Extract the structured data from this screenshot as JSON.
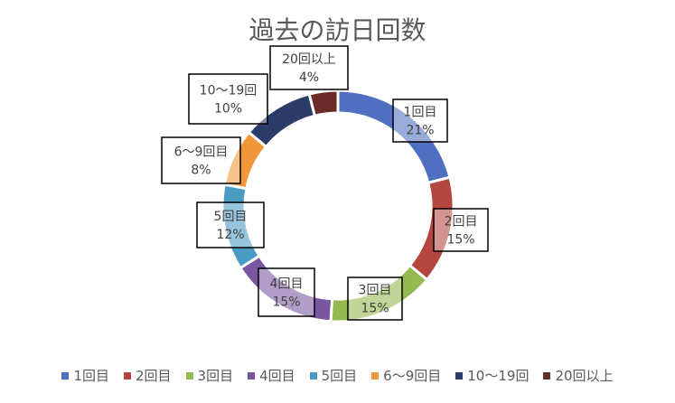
{
  "chart_data": {
    "type": "pie",
    "title": "過去の訪日回数",
    "legend_position": "bottom",
    "categories": [
      "1回目",
      "2回目",
      "3回目",
      "4回目",
      "5回目",
      "6～9回目",
      "10～19回",
      "20回以上"
    ],
    "values": [
      21,
      15,
      15,
      15,
      12,
      8,
      10,
      4
    ],
    "data_labels": [
      "21%",
      "15%",
      "15%",
      "15%",
      "12%",
      "8%",
      "10%",
      "4%"
    ],
    "colors": [
      "#4f6fc0",
      "#b4463f",
      "#93b950",
      "#7b56a0",
      "#4a9bc1",
      "#ef9739",
      "#2c3c6a",
      "#6a2b28"
    ]
  }
}
